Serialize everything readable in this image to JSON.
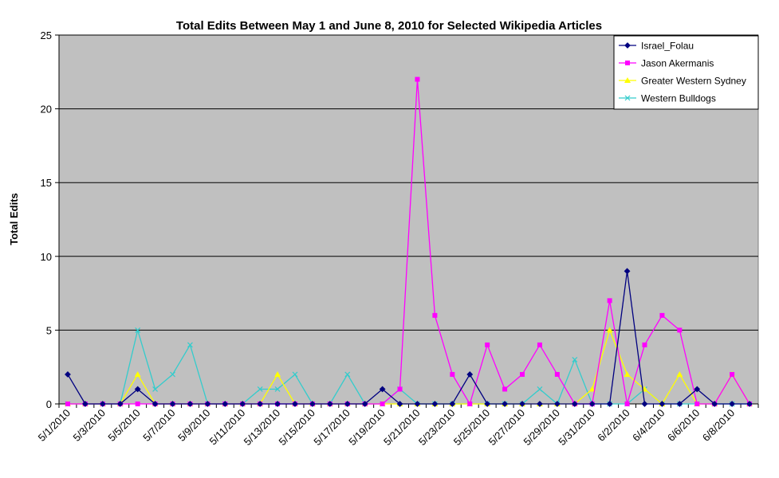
{
  "colors": {
    "plot_bg": "#c0c0c0",
    "gridline": "#000000",
    "series": [
      "#000080",
      "#ff00ff",
      "#ffff00",
      "#33cccc"
    ]
  },
  "chart_data": {
    "type": "line",
    "title": "Total Edits Between May 1 and June 8, 2010 for Selected Wikipedia Articles",
    "xlabel": "",
    "ylabel": "Total Edits",
    "ylim": [
      0,
      25
    ],
    "yticks": [
      0,
      5,
      10,
      15,
      20,
      25
    ],
    "grid": true,
    "legend_position": "top-right",
    "x": [
      "5/1/2010",
      "5/2/2010",
      "5/3/2010",
      "5/4/2010",
      "5/5/2010",
      "5/6/2010",
      "5/7/2010",
      "5/8/2010",
      "5/9/2010",
      "5/10/2010",
      "5/11/2010",
      "5/12/2010",
      "5/13/2010",
      "5/14/2010",
      "5/15/2010",
      "5/16/2010",
      "5/17/2010",
      "5/18/2010",
      "5/19/2010",
      "5/20/2010",
      "5/21/2010",
      "5/22/2010",
      "5/23/2010",
      "5/24/2010",
      "5/25/2010",
      "5/26/2010",
      "5/27/2010",
      "5/28/2010",
      "5/29/2010",
      "5/30/2010",
      "5/31/2010",
      "6/1/2010",
      "6/2/2010",
      "6/3/2010",
      "6/4/2010",
      "6/5/2010",
      "6/6/2010",
      "6/7/2010",
      "6/8/2010",
      "6/9/2010"
    ],
    "xticklabels": [
      "5/1/2010",
      "5/3/2010",
      "5/5/2010",
      "5/7/2010",
      "5/9/2010",
      "5/11/2010",
      "5/13/2010",
      "5/15/2010",
      "5/17/2010",
      "5/19/2010",
      "5/21/2010",
      "5/23/2010",
      "5/25/2010",
      "5/27/2010",
      "5/29/2010",
      "5/31/2010",
      "6/2/2010",
      "6/4/2010",
      "6/6/2010",
      "6/8/2010"
    ],
    "series": [
      {
        "name": "Israel_Folau",
        "marker": "diamond",
        "values": [
          2,
          0,
          0,
          0,
          1,
          0,
          0,
          0,
          0,
          0,
          0,
          0,
          0,
          0,
          0,
          0,
          0,
          0,
          1,
          0,
          0,
          0,
          0,
          2,
          0,
          0,
          0,
          0,
          0,
          0,
          0,
          0,
          9,
          0,
          0,
          0,
          1,
          0,
          0,
          0
        ]
      },
      {
        "name": "Jason Akermanis",
        "marker": "square",
        "values": [
          0,
          0,
          0,
          0,
          0,
          0,
          0,
          0,
          0,
          0,
          0,
          0,
          0,
          0,
          0,
          0,
          0,
          0,
          0,
          1,
          22,
          6,
          2,
          0,
          4,
          1,
          2,
          4,
          2,
          0,
          0,
          7,
          0,
          4,
          6,
          5,
          0,
          0,
          2,
          0
        ]
      },
      {
        "name": "Greater Western Sydney",
        "marker": "triangle",
        "values": [
          0,
          0,
          0,
          0,
          2,
          0,
          0,
          0,
          0,
          0,
          0,
          0,
          2,
          0,
          0,
          0,
          0,
          0,
          0,
          0,
          0,
          0,
          0,
          0,
          0,
          0,
          0,
          0,
          0,
          0,
          1,
          5,
          2,
          1,
          0,
          2,
          0,
          0,
          2,
          0
        ]
      },
      {
        "name": "Western Bulldogs",
        "marker": "x",
        "values": [
          0,
          0,
          0,
          0,
          5,
          1,
          2,
          4,
          0,
          0,
          0,
          1,
          1,
          2,
          0,
          0,
          2,
          0,
          0,
          1,
          0,
          0,
          0,
          0,
          0,
          0,
          0,
          1,
          0,
          3,
          0,
          0,
          0,
          1,
          0,
          0,
          0,
          0,
          0,
          0
        ]
      }
    ]
  }
}
